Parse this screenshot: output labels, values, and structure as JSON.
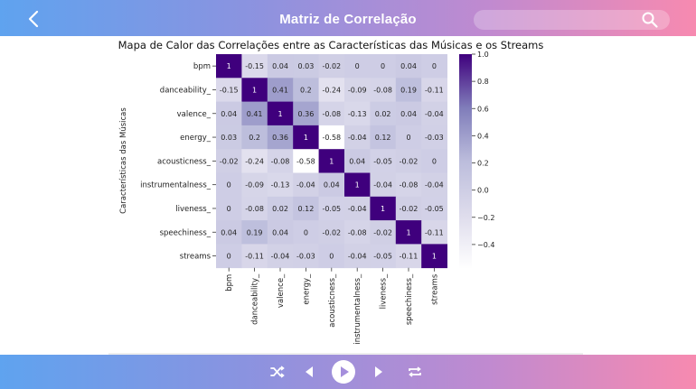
{
  "app": {
    "title": "Matriz de Correlação",
    "search": {
      "placeholder": ""
    }
  },
  "icons": {
    "back": "chevron-left-icon",
    "search": "search-icon",
    "shuffle": "shuffle-icon",
    "previous": "previous-icon",
    "play": "play-icon",
    "next": "next-icon",
    "repeat": "repeat-icon"
  },
  "colors": {
    "bar_gradient": [
      "#5fa3ef",
      "#8a93e0",
      "#c08ad0",
      "#f78ab0"
    ],
    "heat_low": "#ffffff",
    "heat_high": "#3f007d"
  },
  "chart_data": {
    "type": "heatmap",
    "title": "Mapa de Calor das Correlações entre as Características das Músicas e os Streams",
    "ylabel": "Características das Músicas",
    "xlabel": "",
    "labels": [
      "bpm",
      "danceability_",
      "valence_",
      "energy_",
      "acousticness_",
      "instrumentalness_",
      "liveness_",
      "speechiness_",
      "streams"
    ],
    "matrix": [
      [
        1,
        -0.15,
        0.04,
        0.03,
        -0.02,
        0,
        0,
        0.04,
        0
      ],
      [
        -0.15,
        1,
        0.41,
        0.2,
        -0.24,
        -0.09,
        -0.08,
        0.19,
        -0.11
      ],
      [
        0.04,
        0.41,
        1,
        0.36,
        -0.08,
        -0.13,
        0.02,
        0.04,
        -0.04
      ],
      [
        0.03,
        0.2,
        0.36,
        1,
        -0.58,
        -0.04,
        0.12,
        0,
        -0.03
      ],
      [
        -0.02,
        -0.24,
        -0.08,
        -0.58,
        1,
        0.04,
        -0.05,
        -0.02,
        0
      ],
      [
        0,
        -0.09,
        -0.13,
        -0.04,
        0.04,
        1,
        -0.04,
        -0.08,
        -0.04
      ],
      [
        0,
        -0.08,
        0.02,
        0.12,
        -0.05,
        -0.04,
        1,
        -0.02,
        -0.05
      ],
      [
        0.04,
        0.19,
        0.04,
        0,
        -0.02,
        -0.08,
        -0.02,
        1,
        -0.11
      ],
      [
        0,
        -0.11,
        -0.04,
        -0.03,
        0,
        -0.04,
        -0.05,
        -0.11,
        1
      ]
    ],
    "colorbar": {
      "range": [
        -0.58,
        1.0
      ],
      "ticks": [
        1.0,
        0.8,
        0.6,
        0.4,
        0.2,
        0.0,
        -0.2,
        -0.4
      ],
      "tick_labels": [
        "1.0",
        "0.8",
        "0.6",
        "0.4",
        "0.2",
        "0.0",
        "−0.2",
        "−0.4"
      ]
    }
  }
}
